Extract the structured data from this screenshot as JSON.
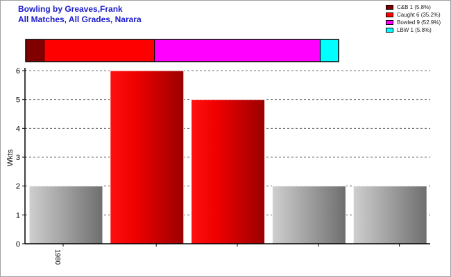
{
  "header": {
    "title": "Bowling by Greaves,Frank",
    "subtitle": "All Matches, All Grades, Narara"
  },
  "legend": [
    {
      "label": "C&B 1 (5.8%)",
      "color": "#800000"
    },
    {
      "label": "Caught 6 (35.2%)",
      "color": "#ff0000"
    },
    {
      "label": "Bowled 9 (52.9%)",
      "color": "#ff00ff"
    },
    {
      "label": "LBW 1 (5.8%)",
      "color": "#00ffff"
    }
  ],
  "chart_data": [
    {
      "type": "bar",
      "orientation": "horizontal-stacked",
      "series": [
        {
          "name": "C&B",
          "value": 1,
          "percent": 5.8,
          "color": "#800000"
        },
        {
          "name": "Caught",
          "value": 6,
          "percent": 35.2,
          "color": "#ff0000"
        },
        {
          "name": "Bowled",
          "value": 9,
          "percent": 52.9,
          "color": "#ff00ff"
        },
        {
          "name": "LBW",
          "value": 1,
          "percent": 5.8,
          "color": "#00ffff"
        }
      ]
    },
    {
      "type": "bar",
      "categories": [
        "1980",
        "",
        "",
        "",
        ""
      ],
      "values": [
        2,
        6,
        5,
        2,
        2
      ],
      "highlight": [
        false,
        true,
        true,
        false,
        false
      ],
      "ylabel": "Wkts",
      "xlabel": "",
      "ylim": [
        0,
        6
      ],
      "yticks": [
        0,
        1,
        2,
        3,
        4,
        5,
        6
      ],
      "grid": "horizontal-dashed",
      "colors": {
        "highlight": "#ff0000",
        "normal": "#b0b0b0"
      }
    }
  ]
}
